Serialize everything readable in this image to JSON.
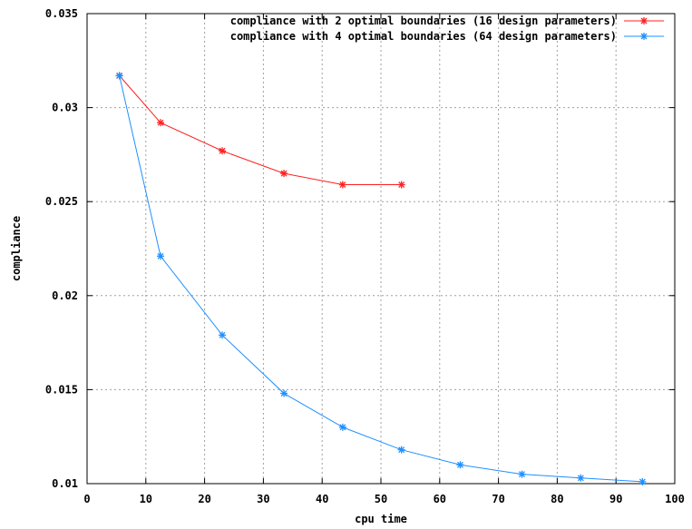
{
  "chart_data": {
    "type": "line",
    "title": "",
    "xlabel": "cpu time",
    "ylabel": "compliance",
    "xlim": [
      0,
      100
    ],
    "ylim": [
      0.01,
      0.035
    ],
    "x_ticks": [
      "0",
      "10",
      "20",
      "30",
      "40",
      "50",
      "60",
      "70",
      "80",
      "90",
      "100"
    ],
    "y_ticks": [
      "0.01",
      "0.015",
      "0.02",
      "0.025",
      "0.03",
      "0.035"
    ],
    "grid": true,
    "legend_position": "top-right",
    "series": [
      {
        "name": "compliance with 2 optimal boundaries (16 design parameters)",
        "color": "#ff2020",
        "marker": "asterisk",
        "x": [
          5.5,
          12.5,
          23.0,
          33.5,
          43.5,
          53.5
        ],
        "y": [
          0.0317,
          0.0292,
          0.0277,
          0.0265,
          0.0259,
          0.0259
        ]
      },
      {
        "name": "compliance with 4 optimal boundaries (64 design parameters)",
        "color": "#1e90ff",
        "marker": "asterisk",
        "x": [
          5.5,
          12.5,
          23.0,
          33.5,
          43.5,
          53.5,
          63.5,
          74.0,
          84.0,
          94.5
        ],
        "y": [
          0.0317,
          0.0221,
          0.0179,
          0.0148,
          0.013,
          0.0118,
          0.011,
          0.0105,
          0.0103,
          0.0101
        ]
      }
    ]
  }
}
